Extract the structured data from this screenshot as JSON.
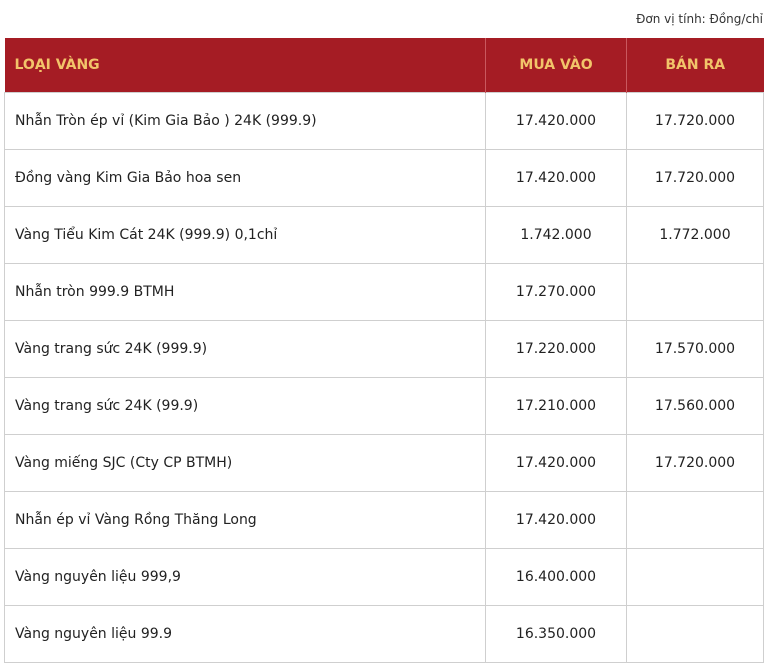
{
  "header": {
    "unit": "Đơn vị tính: Đồng/chỉ"
  },
  "table": {
    "columns": [
      "LOẠI VÀNG",
      "MUA VÀO",
      "BÁN RA"
    ],
    "rows": [
      [
        "Nhẫn Tròn ép vỉ (Kim Gia Bảo ) 24K (999.9)",
        "17.420.000",
        "17.720.000"
      ],
      [
        "Đồng vàng Kim Gia Bảo hoa sen",
        "17.420.000",
        "17.720.000"
      ],
      [
        "Vàng Tiểu Kim Cát 24K (999.9) 0,1chỉ",
        "1.742.000",
        "1.772.000"
      ],
      [
        "Nhẫn tròn 999.9 BTMH",
        "17.270.000",
        null
      ],
      [
        "Vàng trang sức 24K (999.9)",
        "17.220.000",
        "17.570.000"
      ],
      [
        "Vàng trang sức 24K (99.9)",
        "17.210.000",
        "17.560.000"
      ],
      [
        "Vàng miếng SJC (Cty CP BTMH)",
        "17.420.000",
        "17.720.000"
      ],
      [
        "Nhẫn ép vỉ Vàng Rồng Thăng Long",
        "17.420.000",
        null
      ],
      [
        "Vàng nguyên liệu 999,9",
        "16.400.000",
        null
      ],
      [
        "Vàng nguyên liệu 99.9",
        "16.350.000",
        null
      ]
    ]
  }
}
